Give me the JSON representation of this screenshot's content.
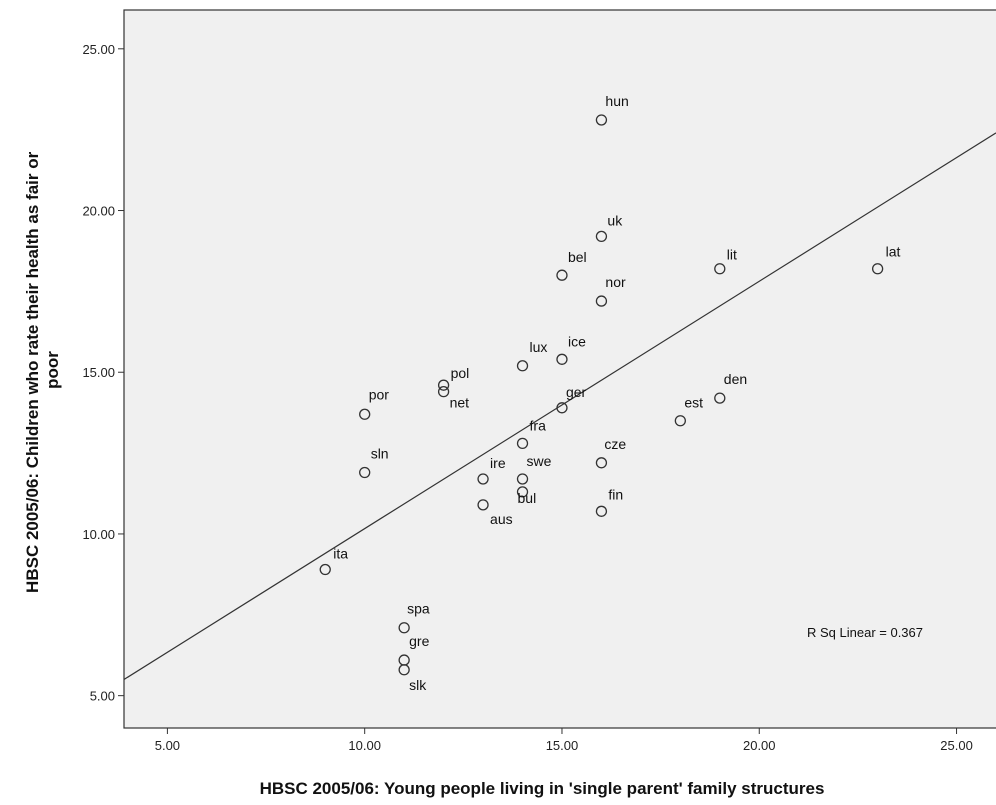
{
  "chart_data": {
    "type": "scatter",
    "title": "",
    "xlabel": "HBSC 2005/06: Young people living in 'single parent' family structures",
    "ylabel_lines": [
      "HBSC 2005/06: Children who rate their health as fair or",
      "poor"
    ],
    "xlim": [
      3.9,
      26.0
    ],
    "ylim": [
      4.0,
      26.2
    ],
    "x_ticks": [
      5,
      10,
      15,
      20,
      25
    ],
    "y_ticks": [
      5,
      10,
      15,
      20,
      25
    ],
    "x_tick_labels": [
      "5.00",
      "10.00",
      "15.00",
      "20.00",
      "25.00"
    ],
    "y_tick_labels": [
      "5.00",
      "10.00",
      "15.00",
      "20.00",
      "25.00"
    ],
    "grid": false,
    "colors": {
      "plot_background": "#f0f0f0",
      "marker": "#333333",
      "line": "#333333"
    },
    "points": [
      {
        "label": "hun",
        "x": 16,
        "y": 22.8
      },
      {
        "label": "uk",
        "x": 16,
        "y": 19.2
      },
      {
        "label": "bel",
        "x": 15,
        "y": 18.0
      },
      {
        "label": "nor",
        "x": 16,
        "y": 17.2
      },
      {
        "label": "lit",
        "x": 19,
        "y": 18.2
      },
      {
        "label": "lat",
        "x": 23,
        "y": 18.2
      },
      {
        "label": "lux",
        "x": 14,
        "y": 15.2
      },
      {
        "label": "ice",
        "x": 15,
        "y": 15.4
      },
      {
        "label": "pol",
        "x": 12,
        "y": 14.6
      },
      {
        "label": "net",
        "x": 12,
        "y": 14.4
      },
      {
        "label": "por",
        "x": 10,
        "y": 13.7
      },
      {
        "label": "ger",
        "x": 15,
        "y": 13.9
      },
      {
        "label": "den",
        "x": 19,
        "y": 14.2
      },
      {
        "label": "est",
        "x": 18,
        "y": 13.5
      },
      {
        "label": "fra",
        "x": 14,
        "y": 12.8
      },
      {
        "label": "cze",
        "x": 16,
        "y": 12.2
      },
      {
        "label": "sln",
        "x": 10,
        "y": 11.9
      },
      {
        "label": "ire",
        "x": 13,
        "y": 11.7
      },
      {
        "label": "swe",
        "x": 14,
        "y": 11.7
      },
      {
        "label": "bul",
        "x": 14,
        "y": 11.3
      },
      {
        "label": "aus",
        "x": 13,
        "y": 10.9
      },
      {
        "label": "fin",
        "x": 16,
        "y": 10.7
      },
      {
        "label": "ita",
        "x": 9,
        "y": 8.9
      },
      {
        "label": "spa",
        "x": 11,
        "y": 7.1
      },
      {
        "label": "gre",
        "x": 11,
        "y": 6.1
      },
      {
        "label": "slk",
        "x": 11,
        "y": 5.8
      }
    ],
    "fit_line": {
      "x": [
        3.9,
        26.0
      ],
      "y": [
        5.5,
        22.4
      ]
    },
    "annotation": "R Sq Linear = 0.367"
  }
}
